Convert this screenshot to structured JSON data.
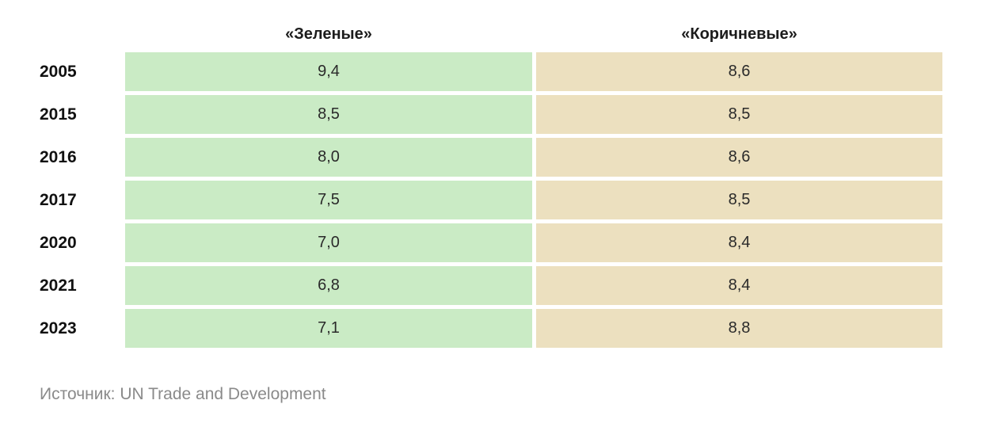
{
  "colors": {
    "green_fill": "#caebc5",
    "brown_fill": "#ece0bf"
  },
  "chart_data": {
    "type": "table",
    "columns": [
      "«Зеленые»",
      "«Коричневые»"
    ],
    "rows": [
      {
        "year": "2005",
        "green": "9,4",
        "brown": "8,6"
      },
      {
        "year": "2015",
        "green": "8,5",
        "brown": "8,5"
      },
      {
        "year": "2016",
        "green": "8,0",
        "brown": "8,6"
      },
      {
        "year": "2017",
        "green": "7,5",
        "brown": "8,5"
      },
      {
        "year": "2020",
        "green": "7,0",
        "brown": "8,4"
      },
      {
        "year": "2021",
        "green": "6,8",
        "brown": "8,4"
      },
      {
        "year": "2023",
        "green": "7,1",
        "brown": "8,8"
      }
    ]
  },
  "source": "Источник: UN Trade and Development"
}
